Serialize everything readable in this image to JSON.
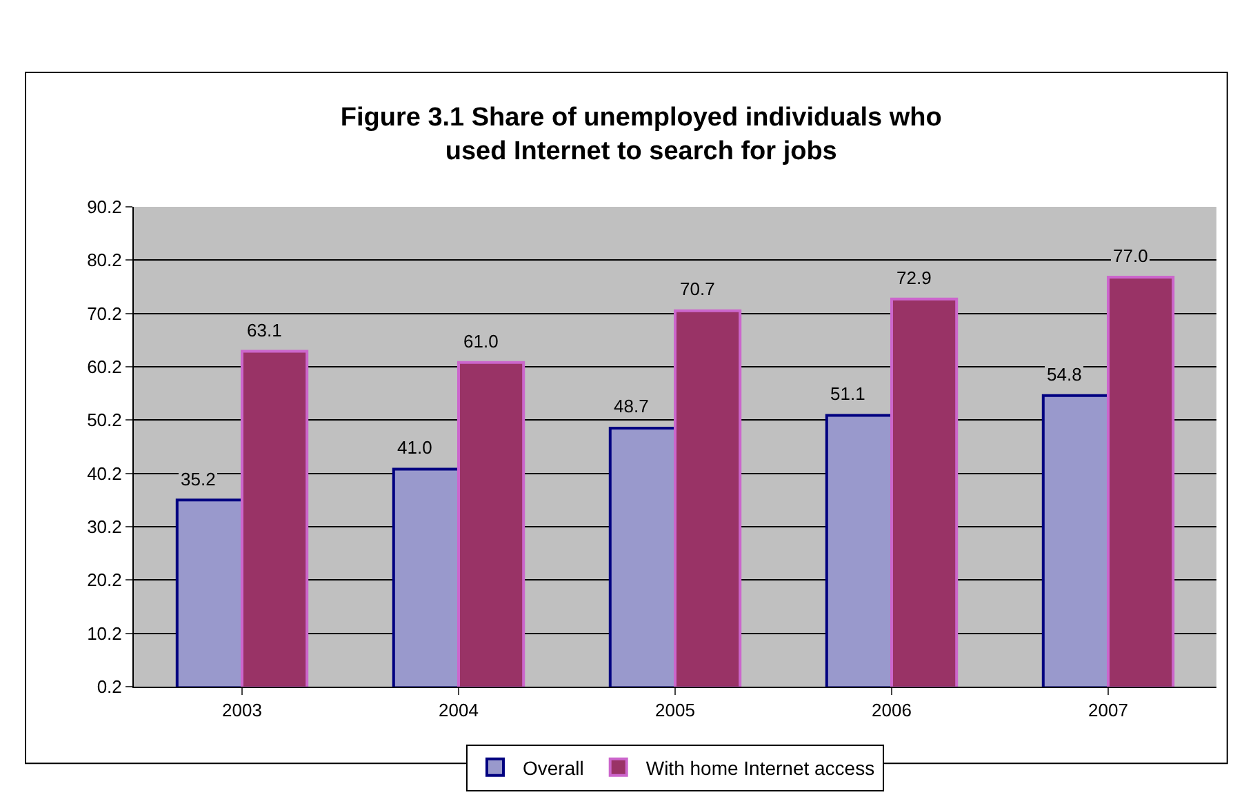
{
  "chart_data": {
    "type": "bar",
    "title": "Figure 3.1 Share of unemployed individuals who used Internet to search for jobs",
    "categories": [
      "2003",
      "2004",
      "2005",
      "2006",
      "2007"
    ],
    "series": [
      {
        "name": "Overall",
        "color": "#9999cc",
        "values": [
          35.2,
          41.0,
          48.7,
          51.1,
          54.8
        ],
        "value_labels": [
          "35.2",
          "41.0",
          "48.7",
          "51.1",
          "54.8"
        ]
      },
      {
        "name": "With home Internet access",
        "color": "#993366",
        "values": [
          63.1,
          61.0,
          70.7,
          72.9,
          77.0
        ],
        "value_labels": [
          "63.1",
          "61.0",
          "70.7",
          "72.9",
          "77.0"
        ]
      }
    ],
    "ylim": [
      0.2,
      90.2
    ],
    "yticks": [
      0.2,
      10.2,
      20.2,
      30.2,
      40.2,
      50.2,
      60.2,
      70.2,
      80.2,
      90.2
    ],
    "grid": "y",
    "legend": "bottom"
  }
}
